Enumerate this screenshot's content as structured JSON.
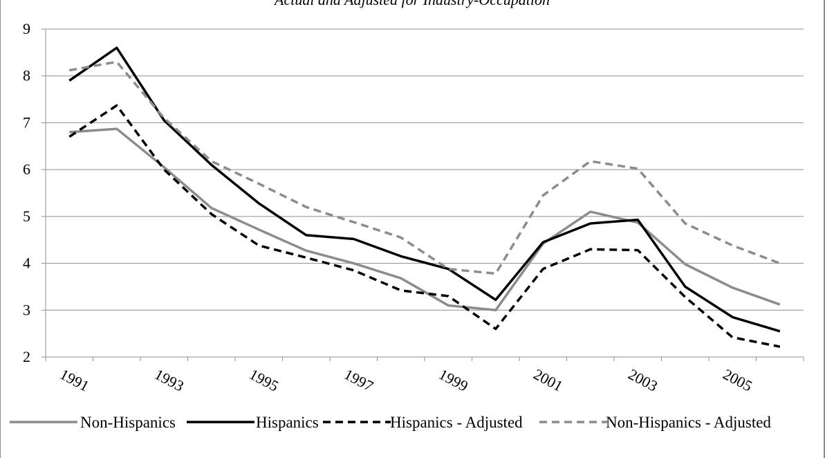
{
  "chart_data": {
    "type": "line",
    "title": "Actual and Adjusted for Industry-Occupation",
    "xlabel": "",
    "ylabel": "",
    "x": [
      1991,
      1992,
      1993,
      1994,
      1995,
      1996,
      1997,
      1998,
      1999,
      2000,
      2001,
      2002,
      2003,
      2004,
      2005,
      2006
    ],
    "x_tick_labels": [
      "1991",
      "1993",
      "1995",
      "1997",
      "1999",
      "2001",
      "2003",
      "2005"
    ],
    "ylim": [
      2,
      9
    ],
    "y_ticks": [
      2,
      3,
      4,
      5,
      6,
      7,
      8,
      9
    ],
    "grid": "horizontal",
    "legend_position": "bottom",
    "series": [
      {
        "name": "Non-Hispanics",
        "color": "#8c8c8c",
        "style": "solid",
        "values": [
          6.8,
          6.87,
          6.05,
          5.18,
          4.72,
          4.27,
          4.0,
          3.68,
          3.1,
          3.0,
          4.42,
          5.1,
          4.87,
          3.98,
          3.48,
          3.12
        ]
      },
      {
        "name": "Hispanics",
        "color": "#000000",
        "style": "solid",
        "values": [
          7.9,
          8.6,
          7.05,
          6.1,
          5.28,
          4.6,
          4.52,
          4.15,
          3.88,
          3.22,
          4.45,
          4.85,
          4.93,
          3.5,
          2.85,
          2.55
        ]
      },
      {
        "name": "Hispanics - Adjusted",
        "color": "#000000",
        "style": "dashed",
        "values": [
          6.7,
          7.37,
          6.0,
          5.05,
          4.38,
          4.12,
          3.85,
          3.42,
          3.3,
          2.6,
          3.88,
          4.3,
          4.28,
          3.28,
          2.42,
          2.22
        ]
      },
      {
        "name": "Non-Hispanics - Adjusted",
        "color": "#8c8c8c",
        "style": "dashed",
        "values": [
          8.12,
          8.3,
          7.1,
          6.18,
          5.7,
          5.2,
          4.88,
          4.55,
          3.88,
          3.78,
          5.45,
          6.18,
          6.02,
          4.85,
          4.38,
          4.0
        ]
      }
    ]
  }
}
